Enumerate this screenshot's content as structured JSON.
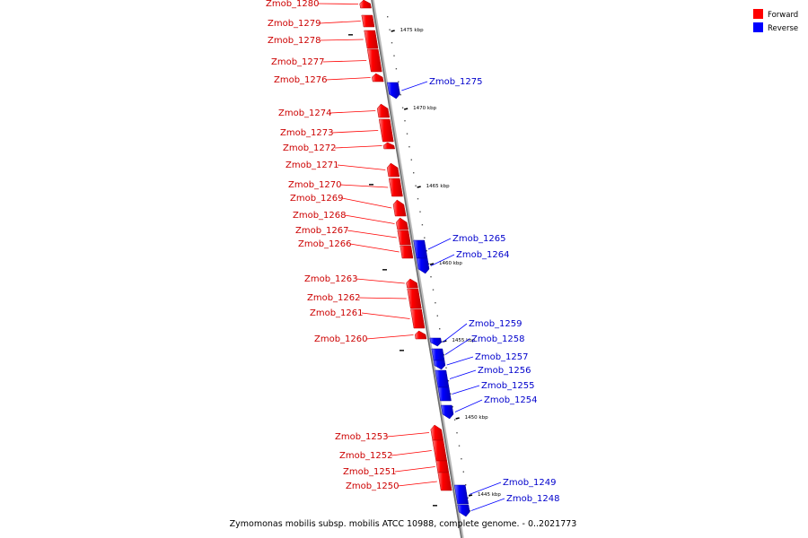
{
  "caption": "Zymomonas mobilis subsp. mobilis ATCC 10988, complete genome. - 0..2021773",
  "legend": [
    {
      "label": "Forward",
      "color": "#ff0000"
    },
    {
      "label": "Reverse",
      "color": "#0000ff"
    }
  ],
  "colors": {
    "forward": "#ff0000",
    "reverse": "#0000ff",
    "axis": "#888888"
  },
  "ticks": [
    "1475 kbp",
    "1470 kbp",
    "1465 kbp",
    "1460 kbp",
    "1455 kbp",
    "1450 kbp",
    "1445 kbp"
  ],
  "genes": [
    {
      "name": "Zmob_1280",
      "strand": "forward"
    },
    {
      "name": "Zmob_1279",
      "strand": "forward"
    },
    {
      "name": "Zmob_1278",
      "strand": "forward"
    },
    {
      "name": "Zmob_1277",
      "strand": "forward"
    },
    {
      "name": "Zmob_1276",
      "strand": "forward"
    },
    {
      "name": "Zmob_1275",
      "strand": "reverse"
    },
    {
      "name": "Zmob_1274",
      "strand": "forward"
    },
    {
      "name": "Zmob_1273",
      "strand": "forward"
    },
    {
      "name": "Zmob_1272",
      "strand": "forward"
    },
    {
      "name": "Zmob_1271",
      "strand": "forward"
    },
    {
      "name": "Zmob_1270",
      "strand": "forward"
    },
    {
      "name": "Zmob_1269",
      "strand": "forward"
    },
    {
      "name": "Zmob_1268",
      "strand": "forward"
    },
    {
      "name": "Zmob_1267",
      "strand": "forward"
    },
    {
      "name": "Zmob_1266",
      "strand": "forward"
    },
    {
      "name": "Zmob_1265",
      "strand": "reverse"
    },
    {
      "name": "Zmob_1264",
      "strand": "reverse"
    },
    {
      "name": "Zmob_1263",
      "strand": "forward"
    },
    {
      "name": "Zmob_1262",
      "strand": "forward"
    },
    {
      "name": "Zmob_1261",
      "strand": "forward"
    },
    {
      "name": "Zmob_1260",
      "strand": "forward"
    },
    {
      "name": "Zmob_1259",
      "strand": "reverse"
    },
    {
      "name": "Zmob_1258",
      "strand": "reverse"
    },
    {
      "name": "Zmob_1257",
      "strand": "reverse"
    },
    {
      "name": "Zmob_1256",
      "strand": "reverse"
    },
    {
      "name": "Zmob_1255",
      "strand": "reverse"
    },
    {
      "name": "Zmob_1254",
      "strand": "reverse"
    },
    {
      "name": "Zmob_1253",
      "strand": "forward"
    },
    {
      "name": "Zmob_1252",
      "strand": "forward"
    },
    {
      "name": "Zmob_1251",
      "strand": "forward"
    },
    {
      "name": "Zmob_1250",
      "strand": "forward"
    },
    {
      "name": "Zmob_1249",
      "strand": "reverse"
    },
    {
      "name": "Zmob_1248",
      "strand": "reverse"
    }
  ]
}
